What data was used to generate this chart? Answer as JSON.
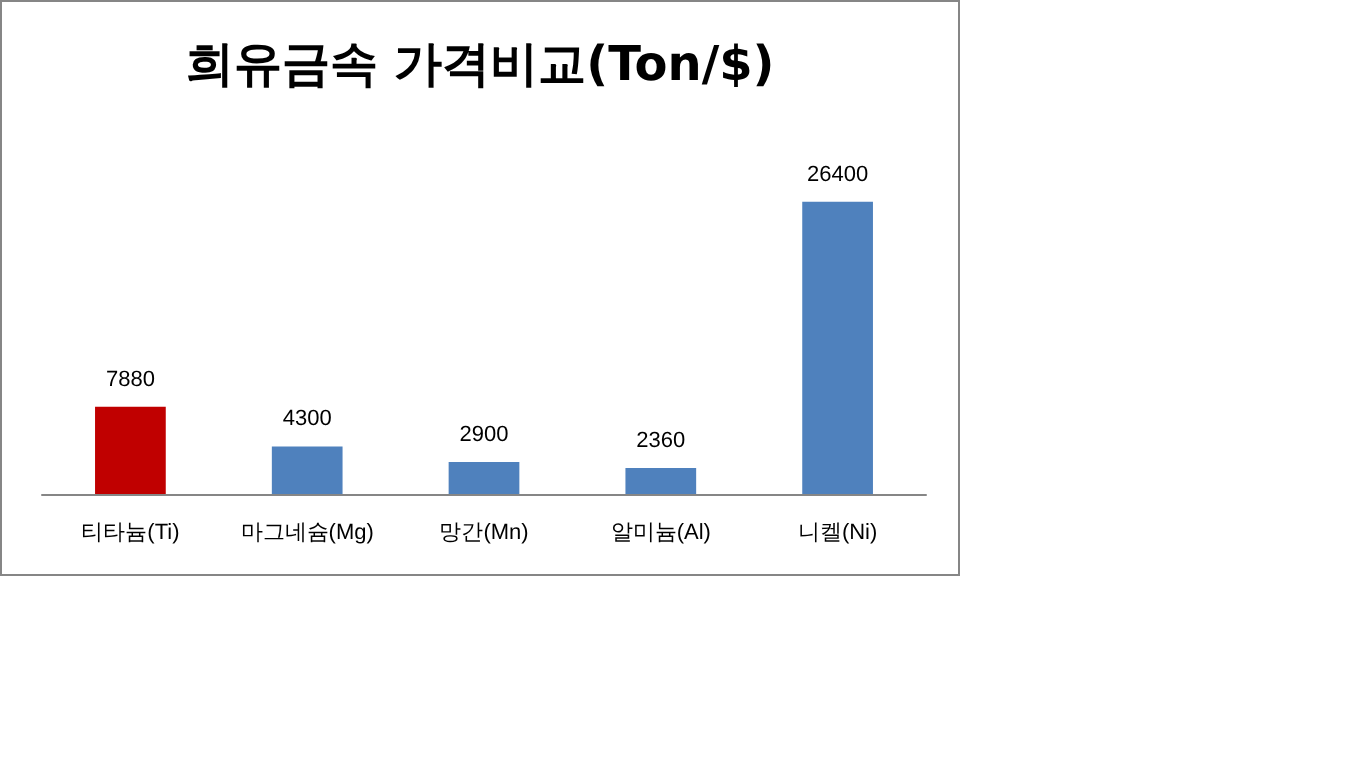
{
  "chart_data": {
    "type": "bar",
    "title": "희유금속 가격비교(Ton/$)",
    "categories": [
      "티타늄(Ti)",
      "마그네슘(Mg)",
      "망간(Mn)",
      "알미늄(Al)",
      "니켈(Ni)"
    ],
    "values": [
      7880,
      4300,
      2900,
      2360,
      26400
    ],
    "colors": [
      "#c00000",
      "#4f81bd",
      "#4f81bd",
      "#4f81bd",
      "#4f81bd"
    ],
    "data_labels": true
  }
}
